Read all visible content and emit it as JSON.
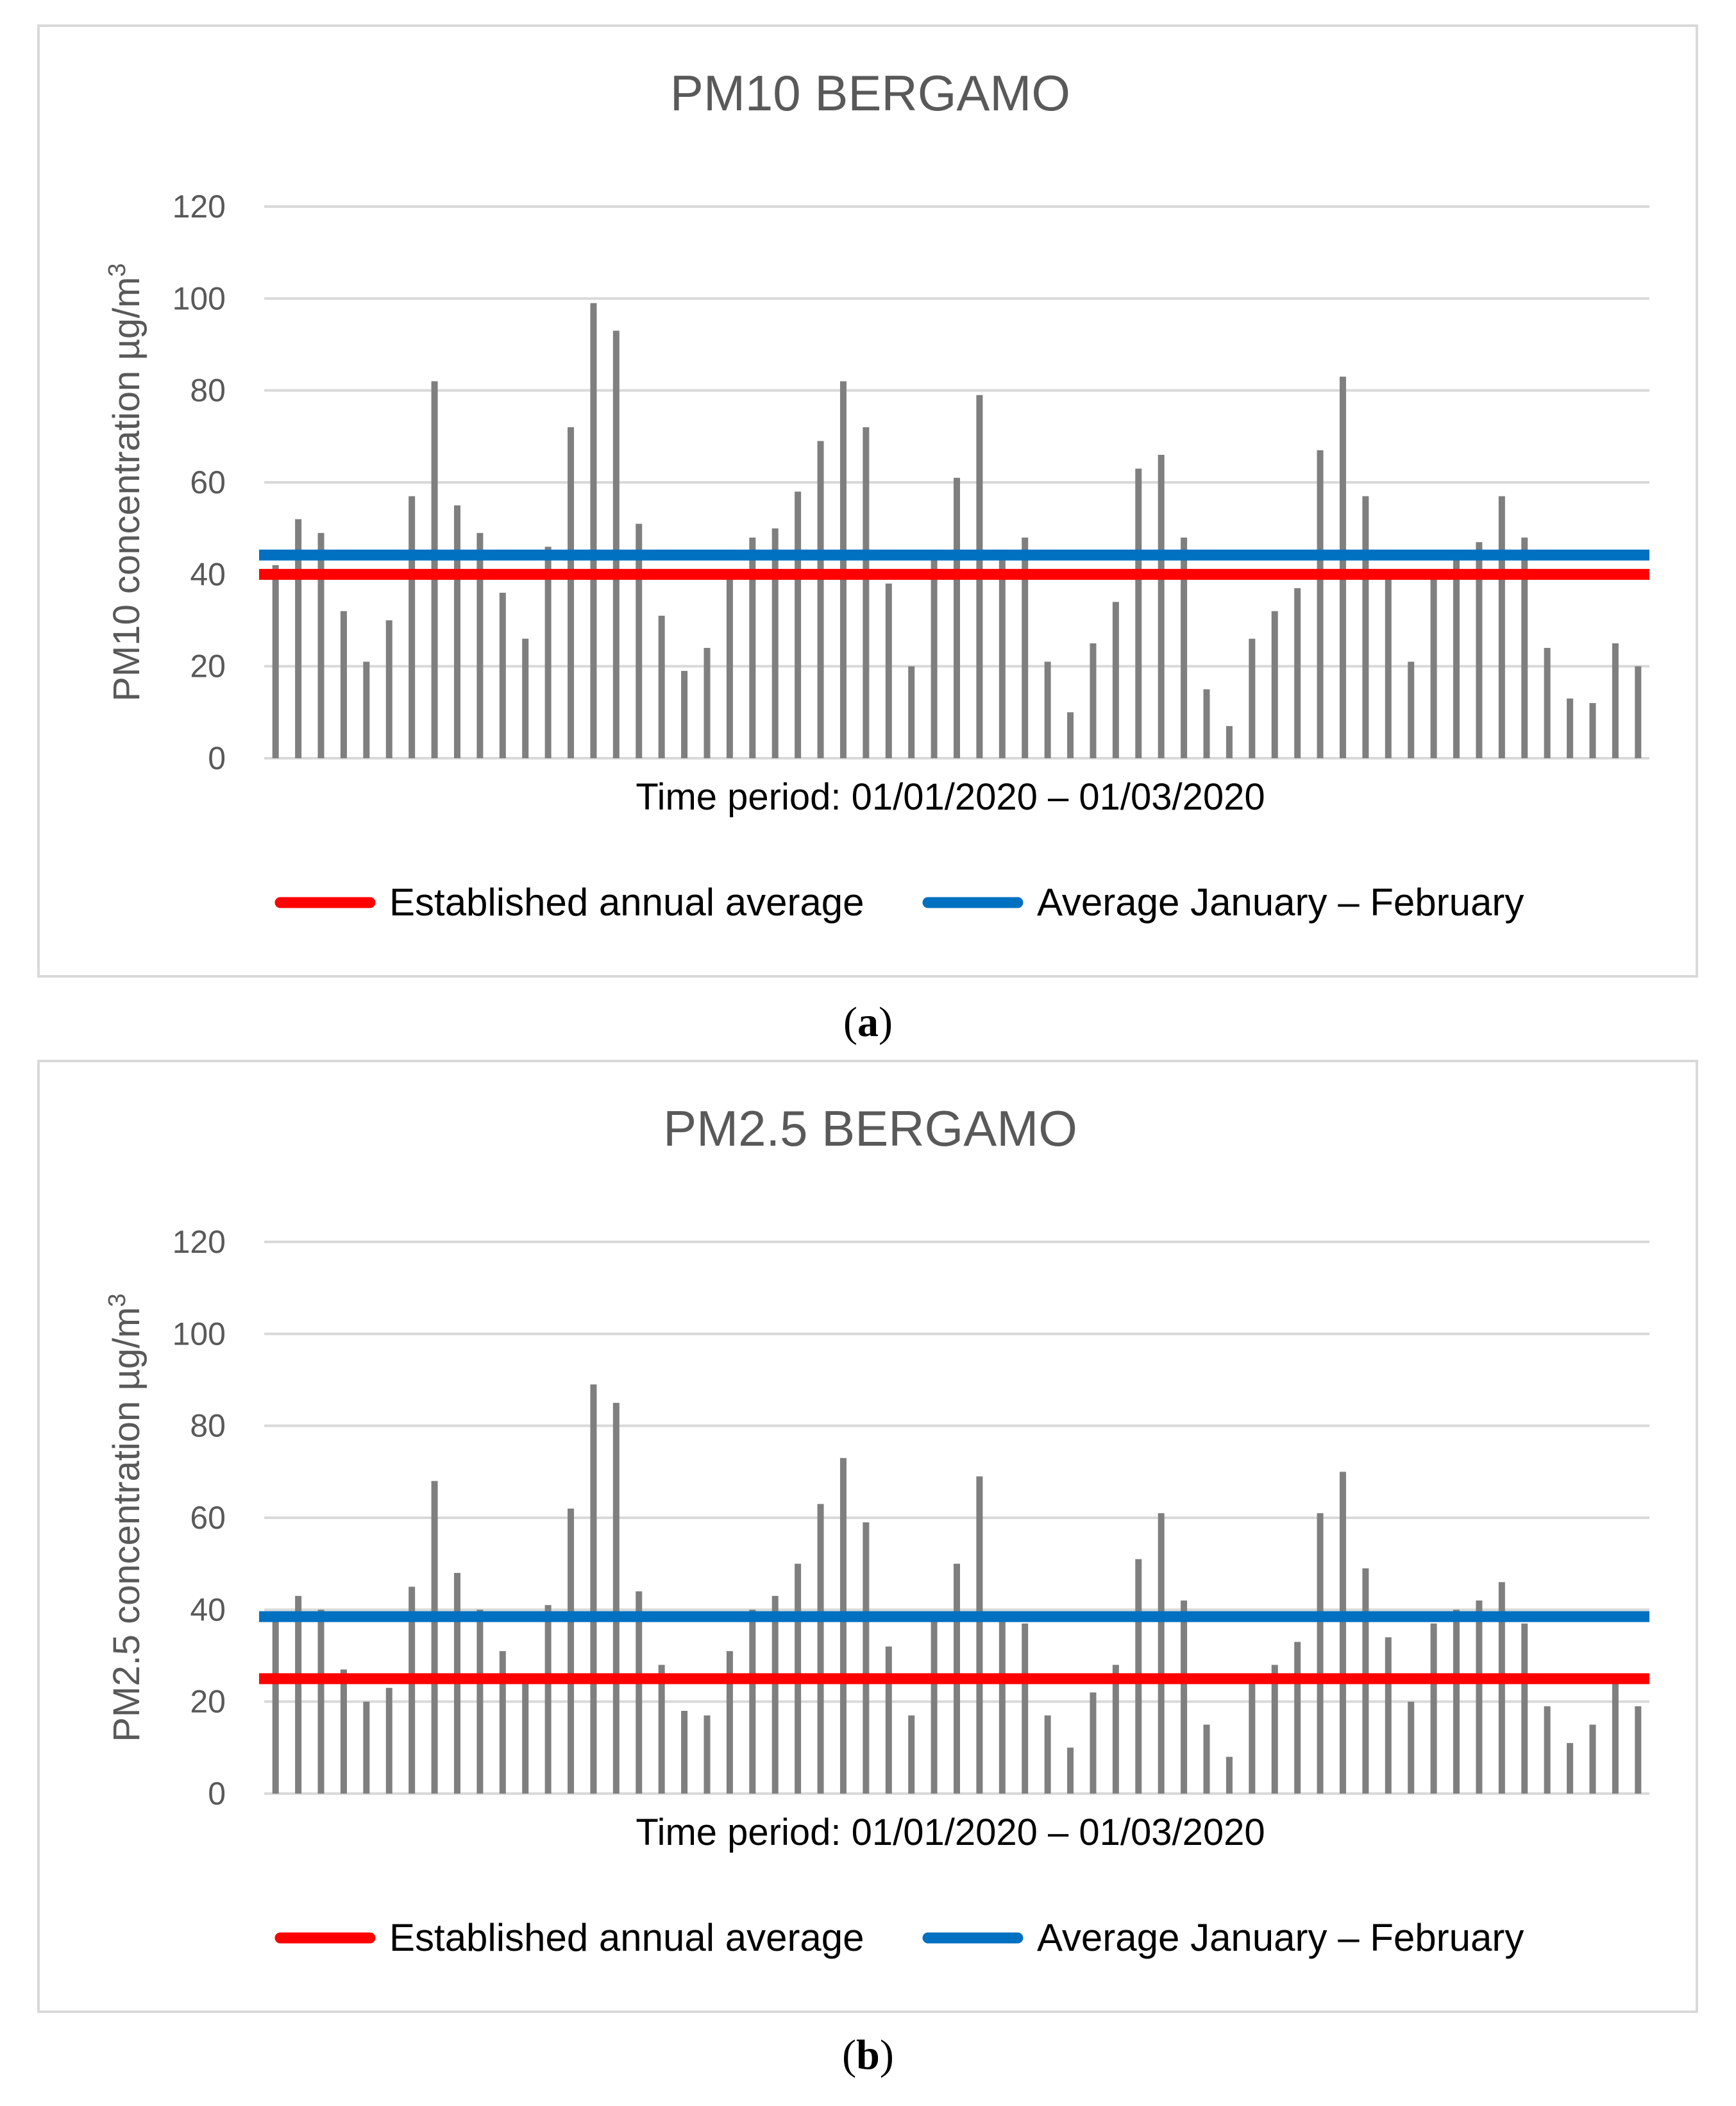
{
  "chart_data": [
    {
      "type": "bar",
      "title": "PM10 BERGAMO",
      "xlabel": "Time period: 01/01/2020 – 01/03/2020",
      "ylabel": "PM10 concentration µg/m³",
      "ylim": [
        0,
        120
      ],
      "yticks": [
        0,
        20,
        40,
        60,
        80,
        100,
        120
      ],
      "grid": true,
      "values": [
        42,
        52,
        49,
        32,
        21,
        30,
        57,
        82,
        55,
        49,
        36,
        26,
        46,
        72,
        99,
        93,
        51,
        31,
        19,
        24,
        40,
        48,
        50,
        58,
        69,
        82,
        72,
        38,
        20,
        44,
        61,
        79,
        44,
        48,
        21,
        10,
        25,
        34,
        63,
        66,
        48,
        15,
        7,
        26,
        32,
        37,
        67,
        83,
        57,
        40,
        21,
        40,
        44,
        47,
        57,
        48,
        24,
        13,
        12,
        25,
        20
      ],
      "reference_lines": [
        {
          "name": "Established annual average",
          "value": 40,
          "color": "#ff0000"
        },
        {
          "name": "Average January – February",
          "value": 44.2,
          "color": "#0070c0"
        }
      ],
      "bar_color": "#7f7f7f",
      "legend": "bottom",
      "caption": "a"
    },
    {
      "type": "bar",
      "title": "PM2.5 BERGAMO",
      "xlabel": "Time period: 01/01/2020 – 01/03/2020",
      "ylabel": "PM2.5 concentration µg/m³",
      "ylim": [
        0,
        120
      ],
      "yticks": [
        0,
        20,
        40,
        60,
        80,
        100,
        120
      ],
      "grid": true,
      "values": [
        38,
        43,
        40,
        27,
        20,
        23,
        45,
        68,
        48,
        40,
        31,
        24,
        41,
        62,
        89,
        85,
        44,
        28,
        18,
        17,
        31,
        40,
        43,
        50,
        63,
        73,
        59,
        32,
        17,
        38,
        50,
        69,
        38,
        37,
        17,
        10,
        22,
        28,
        51,
        61,
        42,
        15,
        8,
        25,
        28,
        33,
        61,
        70,
        49,
        34,
        20,
        37,
        40,
        42,
        46,
        37,
        19,
        11,
        15,
        25,
        19
      ],
      "reference_lines": [
        {
          "name": "Established annual average",
          "value": 25,
          "color": "#ff0000"
        },
        {
          "name": "Average January – February",
          "value": 38.5,
          "color": "#0070c0"
        }
      ],
      "bar_color": "#7f7f7f",
      "legend": "bottom",
      "caption": "b"
    }
  ],
  "captions": {
    "a": {
      "open": "(",
      "letter": "a",
      "close": ")"
    },
    "b": {
      "open": "(",
      "letter": "b",
      "close": ")"
    }
  }
}
